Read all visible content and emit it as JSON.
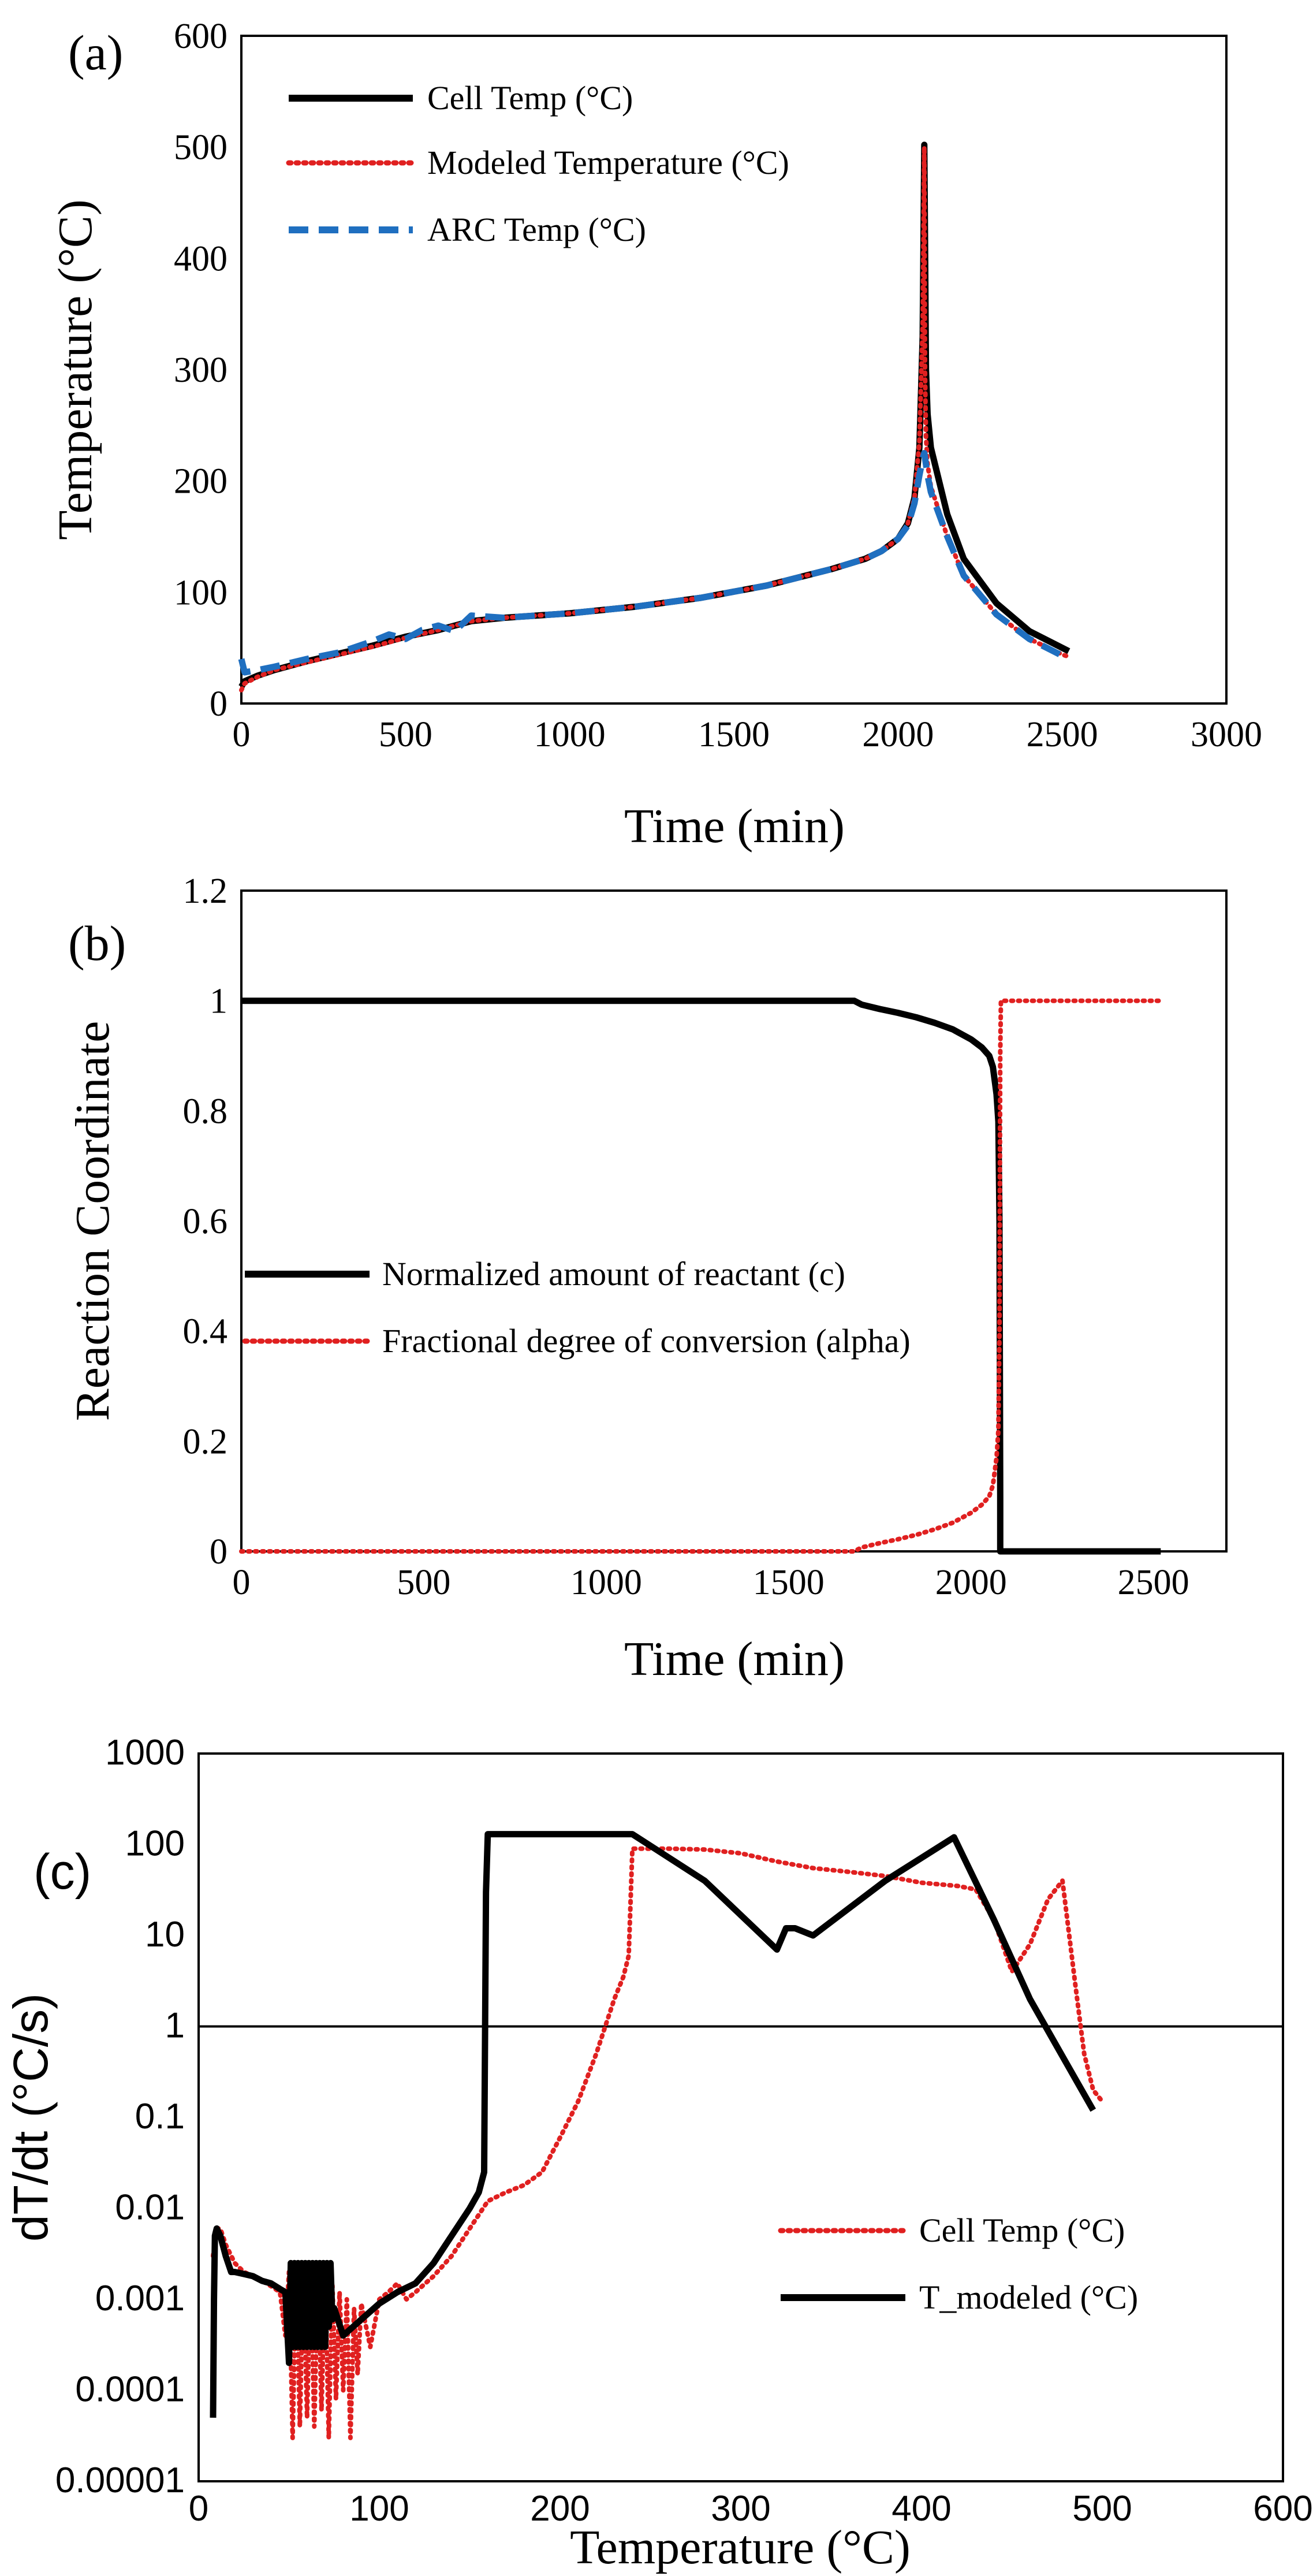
{
  "chart_data": [
    {
      "panel": "(a)",
      "type": "line",
      "xlabel": "Time (min)",
      "ylabel": "Temperature (°C)",
      "xlim": [
        0,
        3000
      ],
      "ylim": [
        0,
        600
      ],
      "xticks": [
        "0",
        "500",
        "1000",
        "1500",
        "2000",
        "2500",
        "3000"
      ],
      "yticks": [
        "0",
        "100",
        "200",
        "300",
        "400",
        "500",
        "600"
      ],
      "legend_position": "top-left",
      "series": [
        {
          "name": "Cell Temp (°C)",
          "color": "#000000",
          "style": "solid",
          "x": [
            0,
            10,
            50,
            100,
            200,
            300,
            400,
            500,
            600,
            700,
            800,
            1000,
            1200,
            1400,
            1600,
            1800,
            1900,
            1950,
            2000,
            2030,
            2050,
            2065,
            2075,
            2080,
            2082,
            2085,
            2090,
            2100,
            2150,
            2200,
            2300,
            2400,
            2500,
            2520
          ],
          "y": [
            15,
            20,
            25,
            30,
            38,
            45,
            52,
            60,
            66,
            74,
            77,
            81,
            87,
            95,
            106,
            121,
            130,
            137,
            148,
            162,
            185,
            230,
            330,
            502,
            420,
            300,
            260,
            230,
            170,
            130,
            90,
            65,
            50,
            47
          ]
        },
        {
          "name": "Modeled Temperature (°C)",
          "color": "#e02020",
          "style": "dotted",
          "x": [
            0,
            10,
            50,
            100,
            200,
            300,
            400,
            500,
            600,
            700,
            800,
            1000,
            1200,
            1400,
            1600,
            1800,
            1900,
            1950,
            2000,
            2030,
            2050,
            2065,
            2075,
            2080,
            2082,
            2085,
            2090,
            2100,
            2150,
            2200,
            2300,
            2400,
            2500,
            2520
          ],
          "y": [
            12,
            18,
            24,
            30,
            37,
            44,
            51,
            59,
            66,
            74,
            77,
            81,
            87,
            95,
            106,
            121,
            130,
            137,
            148,
            162,
            185,
            235,
            340,
            500,
            300,
            240,
            215,
            195,
            150,
            115,
            80,
            58,
            44,
            42
          ]
        },
        {
          "name": "ARC Temp (°C)",
          "color": "#1f6fc0",
          "style": "dashed",
          "x": [
            0,
            10,
            50,
            100,
            200,
            300,
            400,
            450,
            500,
            550,
            600,
            650,
            700,
            800,
            1000,
            1200,
            1400,
            1600,
            1800,
            1900,
            1950,
            2000,
            2030,
            2050,
            2065,
            2075,
            2080,
            2085,
            2090,
            2100,
            2150,
            2200,
            2300,
            2400,
            2500,
            2520
          ],
          "y": [
            40,
            28,
            30,
            33,
            40,
            46,
            56,
            62,
            58,
            66,
            70,
            65,
            79,
            77,
            81,
            87,
            95,
            106,
            121,
            130,
            137,
            148,
            160,
            180,
            205,
            220,
            225,
            215,
            205,
            190,
            150,
            115,
            80,
            58,
            43,
            40
          ]
        }
      ]
    },
    {
      "panel": "(b)",
      "type": "line",
      "xlabel": "Time (min)",
      "ylabel": "Reaction Coordinate",
      "xlim": [
        0,
        2700
      ],
      "ylim": [
        0,
        1.2
      ],
      "xticks": [
        "0",
        "500",
        "1000",
        "1500",
        "2000",
        "2500"
      ],
      "yticks": [
        "0",
        "0.2",
        "0.4",
        "0.6",
        "0.8",
        "1",
        "1.2"
      ],
      "legend_position": "center-left",
      "series": [
        {
          "name": "Normalized amount of reactant (c)",
          "color": "#000000",
          "style": "solid",
          "x": [
            0,
            1680,
            1700,
            1750,
            1800,
            1850,
            1900,
            1950,
            2000,
            2030,
            2050,
            2060,
            2070,
            2075,
            2078,
            2080,
            2080,
            2100,
            2520
          ],
          "y": [
            1,
            1,
            0.993,
            0.985,
            0.978,
            0.97,
            0.96,
            0.948,
            0.93,
            0.915,
            0.9,
            0.88,
            0.83,
            0.78,
            0.6,
            0.1,
            0,
            0,
            0
          ]
        },
        {
          "name": "Fractional degree of conversion (alpha)",
          "color": "#e02020",
          "style": "dotted",
          "x": [
            0,
            1680,
            1700,
            1750,
            1800,
            1850,
            1900,
            1950,
            2000,
            2030,
            2050,
            2060,
            2070,
            2075,
            2078,
            2080,
            2082,
            2100,
            2520
          ],
          "y": [
            0,
            0,
            0.007,
            0.015,
            0.022,
            0.03,
            0.04,
            0.052,
            0.07,
            0.085,
            0.1,
            0.12,
            0.17,
            0.22,
            0.4,
            0.9,
            1,
            1,
            1
          ]
        }
      ]
    },
    {
      "panel": "(c)",
      "type": "line",
      "xlabel": "Temperature (°C)",
      "ylabel": "dT/dt (°C/s)",
      "xlim": [
        0,
        600
      ],
      "ylim": [
        1e-05,
        1000
      ],
      "yscale": "log",
      "xticks": [
        "0",
        "100",
        "200",
        "300",
        "400",
        "500",
        "600"
      ],
      "yticks": [
        "0.00001",
        "0.0001",
        "0.001",
        "0.01",
        "0.1",
        "1",
        "10",
        "100",
        "1000"
      ],
      "reference_line_y": 1,
      "legend_position": "bottom-right",
      "series": [
        {
          "name": "Cell Temp (°C)",
          "color": "#e02020",
          "style": "dotted",
          "x": [
            8,
            10,
            12,
            15,
            20,
            25,
            30,
            35,
            40,
            45,
            48,
            50,
            52,
            54,
            56,
            58,
            60,
            62,
            64,
            66,
            68,
            70,
            72,
            74,
            76,
            78,
            80,
            82,
            84,
            86,
            88,
            90,
            95,
            100,
            105,
            110,
            115,
            120,
            130,
            140,
            150,
            160,
            170,
            180,
            190,
            200,
            210,
            220,
            230,
            235,
            238,
            240,
            250,
            260,
            280,
            300,
            320,
            340,
            360,
            380,
            400,
            420,
            430,
            440,
            450,
            460,
            470,
            478,
            485,
            490,
            495,
            500
          ],
          "y": [
            0.003,
            0.006,
            0.006,
            0.004,
            0.0025,
            0.002,
            0.0018,
            0.0016,
            0.0014,
            0.0012,
            0.0004,
            0.002,
            3e-05,
            0.002,
            4e-05,
            0.002,
            5e-05,
            0.002,
            4e-05,
            0.002,
            6e-05,
            0.002,
            3e-05,
            0.0015,
            8e-05,
            0.0012,
            0.0001,
            0.001,
            3e-05,
            0.0008,
            0.00015,
            0.0009,
            0.0003,
            0.001,
            0.0012,
            0.0015,
            0.001,
            0.0012,
            0.0018,
            0.003,
            0.006,
            0.012,
            0.015,
            0.018,
            0.025,
            0.06,
            0.15,
            0.5,
            2,
            3.5,
            6,
            90,
            90,
            90,
            88,
            80,
            65,
            55,
            50,
            45,
            38,
            35,
            32,
            15,
            4,
            8,
            25,
            40,
            3,
            0.5,
            0.2,
            0.15
          ]
        },
        {
          "name": "T_modeled (°C)",
          "color": "#000000",
          "style": "solid",
          "x": [
            8,
            8.5,
            9,
            10,
            12,
            15,
            18,
            20,
            25,
            30,
            35,
            40,
            45,
            48,
            50,
            51,
            52,
            53,
            54,
            55,
            56,
            57,
            58,
            59,
            60,
            61,
            62,
            63,
            64,
            65,
            66,
            67,
            68,
            69,
            70,
            71,
            72,
            73,
            74,
            75,
            80,
            90,
            100,
            110,
            120,
            130,
            140,
            150,
            155,
            158,
            159,
            160,
            200,
            240,
            280,
            320,
            325,
            330,
            340,
            380,
            418,
            440,
            460,
            480,
            495
          ],
          "y": [
            5e-05,
            0.001,
            0.005,
            0.006,
            0.005,
            0.003,
            0.002,
            0.002,
            0.0019,
            0.0018,
            0.0016,
            0.0015,
            0.0013,
            0.0012,
            0.0002,
            0.0025,
            0.0003,
            0.0025,
            0.0003,
            0.0025,
            0.0003,
            0.0025,
            0.0003,
            0.0025,
            0.0003,
            0.0025,
            0.0003,
            0.0025,
            0.0003,
            0.0025,
            0.0003,
            0.0025,
            0.0003,
            0.0025,
            0.0003,
            0.0025,
            0.0005,
            0.0025,
            0.0006,
            0.0008,
            0.0004,
            0.0006,
            0.0009,
            0.0012,
            0.0015,
            0.0025,
            0.005,
            0.01,
            0.015,
            0.025,
            30,
            130,
            130,
            130,
            40,
            7,
            12,
            12,
            10,
            40,
            120,
            15,
            2,
            0.4,
            0.12
          ]
        }
      ]
    }
  ]
}
